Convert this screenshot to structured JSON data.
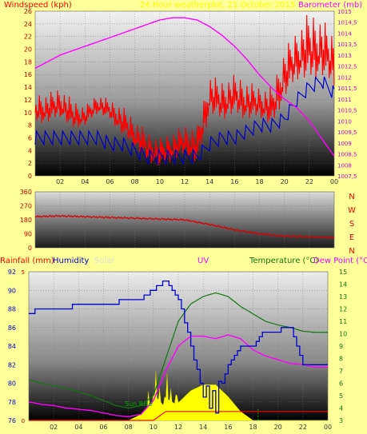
{
  "header": {
    "left_title": "Windspeed (kph)",
    "center_title": "24 Hour weatherplot, 21 October 2015",
    "right_title": "Barometer (mb)"
  },
  "bottom_header": {
    "rainfall": "Rainfall (mm)",
    "humidity": "Humidity",
    "solar": "Solar",
    "uv": "UV",
    "temperature": "Temperature (°C)",
    "dewpoint": "Dew Point (°C)"
  },
  "direction_labels": [
    "N",
    "W",
    "S",
    "E",
    "N"
  ],
  "sun_rise_label": "Sun Rise",
  "colors": {
    "background": "#ffff99",
    "windspeed": "#ff0000",
    "windspeed_avg": "#0000cc",
    "barometer": "#ff00ff",
    "winddir": "#dd0000",
    "humidity": "#0000cc",
    "temperature": "#117711",
    "dewpoint": "#ff00ff",
    "rainfall": "#ff0000",
    "solar": "#ffff00",
    "sunrise_marker": "#00aa00"
  },
  "x_ticks": [
    "02",
    "04",
    "06",
    "08",
    "10",
    "12",
    "14",
    "16",
    "18",
    "20",
    "22",
    "00"
  ],
  "chart_data": [
    {
      "type": "line",
      "name": "wind-baro",
      "ylabel_left": "Windspeed (kph)",
      "ylabel_right": "Barometer (mb)",
      "ylim_left": [
        0,
        26
      ],
      "ylim_right": [
        1007.5,
        1015
      ],
      "y_ticks_left": [
        "0",
        "2",
        "4",
        "6",
        "8",
        "10",
        "12",
        "14",
        "16",
        "18",
        "20",
        "22",
        "24",
        "26"
      ],
      "y_ticks_right": [
        "1007,5",
        "1008",
        "1008,5",
        "1009",
        "1009,5",
        "1010",
        "1010,5",
        "1011",
        "1011,5",
        "1012",
        "1012,5",
        "1013",
        "1013,5",
        "1014",
        "1014,5",
        "1015"
      ],
      "x_hours": [
        0,
        1,
        2,
        3,
        4,
        5,
        6,
        7,
        8,
        9,
        10,
        11,
        12,
        13,
        14,
        15,
        16,
        17,
        18,
        19,
        20,
        21,
        22,
        23,
        24
      ],
      "series": [
        {
          "name": "Windspeed",
          "axis": "left",
          "values": [
            10,
            10,
            11,
            9,
            9,
            11,
            10,
            8,
            6,
            4,
            3,
            4,
            5,
            4,
            12,
            11,
            12,
            11,
            11,
            10,
            15,
            18,
            19,
            19,
            17
          ]
        },
        {
          "name": "Wind gust envelope",
          "axis": "left",
          "values": [
            13,
            13,
            14,
            12,
            11,
            13,
            12,
            11,
            9,
            7,
            6,
            7,
            8,
            8,
            16,
            15,
            16,
            15,
            14,
            14,
            20,
            23,
            26,
            25,
            22
          ]
        },
        {
          "name": "Windspeed average",
          "axis": "left",
          "values": [
            6,
            6,
            6,
            6,
            6,
            6,
            5,
            5,
            4,
            3,
            3,
            3,
            3,
            3,
            5,
            6,
            6,
            7,
            8,
            8,
            9,
            12,
            14,
            15,
            13
          ]
        },
        {
          "name": "Barometer",
          "axis": "right",
          "values": [
            1012.4,
            1012.7,
            1013.0,
            1013.2,
            1013.4,
            1013.6,
            1013.8,
            1014.0,
            1014.2,
            1014.4,
            1014.6,
            1014.7,
            1014.7,
            1014.6,
            1014.3,
            1013.9,
            1013.4,
            1012.8,
            1012.1,
            1011.5,
            1011.0,
            1010.6,
            1010.0,
            1009.2,
            1008.4
          ]
        }
      ]
    },
    {
      "type": "line",
      "name": "wind-direction",
      "ylim": [
        0,
        360
      ],
      "y_ticks": [
        "0",
        "90",
        "180",
        "270",
        "360"
      ],
      "x_hours": [
        0,
        2,
        4,
        6,
        8,
        10,
        12,
        14,
        16,
        18,
        20,
        22,
        24
      ],
      "series": [
        {
          "name": "Wind direction",
          "values": [
            200,
            205,
            200,
            195,
            190,
            185,
            180,
            150,
            115,
            90,
            75,
            70,
            65
          ]
        }
      ]
    },
    {
      "type": "line",
      "name": "rain-humidity-temperature",
      "ylim_left": [
        76,
        92
      ],
      "ylim_right": [
        3,
        15
      ],
      "ylim_rain": [
        0,
        5
      ],
      "y_ticks_left": [
        "76",
        "78",
        "80",
        "82",
        "84",
        "86",
        "88",
        "90",
        "92"
      ],
      "y_ticks_right": [
        "3",
        "4",
        "5",
        "6",
        "7",
        "8",
        "9",
        "10",
        "11",
        "12",
        "13",
        "14",
        "15"
      ],
      "y_ticks_rain": [
        "0",
        "5"
      ],
      "x_hours": [
        0,
        1,
        2,
        3,
        4,
        5,
        6,
        7,
        8,
        9,
        10,
        11,
        12,
        13,
        14,
        15,
        16,
        17,
        18,
        19,
        20,
        21,
        22,
        23,
        24
      ],
      "series": [
        {
          "name": "Humidity",
          "axis": "left",
          "values": [
            87.3,
            88.2,
            88.2,
            88.2,
            88.3,
            88.3,
            88.5,
            88.7,
            88.9,
            89.0,
            90.0,
            91.0,
            89.0,
            84.0,
            78.5,
            78.0,
            81.8,
            83.8,
            84.2,
            85.7,
            85.7,
            86.2,
            82.0,
            82.0,
            82.0
          ]
        },
        {
          "name": "Temperature",
          "axis": "right",
          "values": [
            6.3,
            6.0,
            5.8,
            5.6,
            5.3,
            5.0,
            4.6,
            4.2,
            4.0,
            4.2,
            5.0,
            8.0,
            11.0,
            12.4,
            13.0,
            13.3,
            13.0,
            12.2,
            11.6,
            11.0,
            10.7,
            10.5,
            10.2,
            10.1,
            10.1
          ]
        },
        {
          "name": "Dew Point",
          "axis": "right",
          "values": [
            4.5,
            4.3,
            4.2,
            4.0,
            3.9,
            3.8,
            3.6,
            3.4,
            3.3,
            3.5,
            4.6,
            7.0,
            9.0,
            9.8,
            9.8,
            9.6,
            9.9,
            9.6,
            8.7,
            8.2,
            7.9,
            7.6,
            7.5,
            7.3,
            7.3
          ]
        },
        {
          "name": "Rainfall",
          "axis": "rain",
          "values": [
            0,
            0,
            0,
            0,
            0,
            0,
            0,
            0,
            0,
            0,
            0,
            0.3,
            0.3,
            0.3,
            0.3,
            0.3,
            0.3,
            0.3,
            0.3,
            0.3,
            0.3,
            0.3,
            0.3,
            0.3,
            0.3
          ]
        },
        {
          "name": "Solar",
          "axis": "rain",
          "values": [
            0,
            0,
            0,
            0,
            0,
            0,
            0,
            0,
            0,
            0.2,
            0.6,
            0.5,
            0.6,
            1.0,
            1.2,
            1.2,
            0.8,
            0.3,
            0,
            0,
            0,
            0,
            0,
            0,
            0
          ]
        }
      ]
    }
  ]
}
